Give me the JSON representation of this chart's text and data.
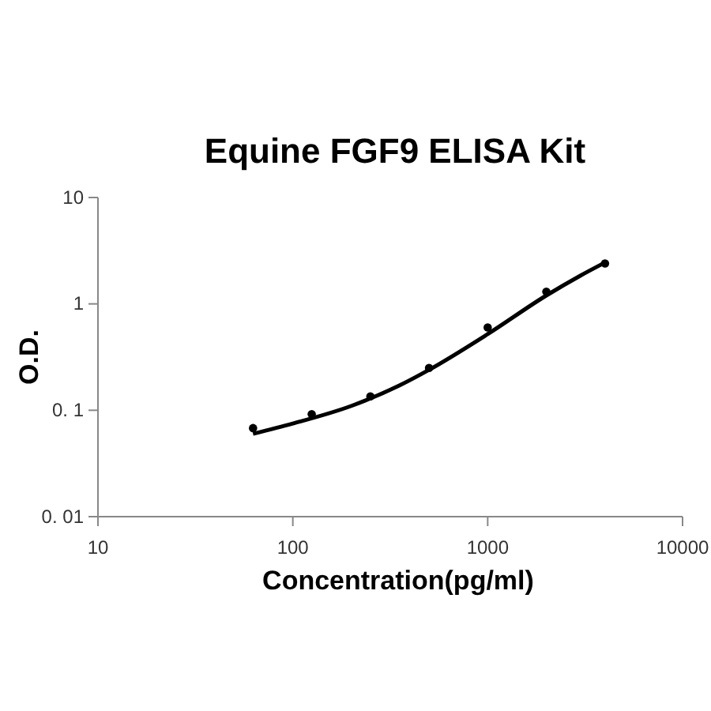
{
  "chart_data": {
    "type": "scatter",
    "title": "Equine FGF9 ELISA Kit",
    "xlabel": "Concentration(pg/ml)",
    "ylabel": "O.D.",
    "log": "xy",
    "xlim": [
      10,
      10000
    ],
    "ylim": [
      0.01,
      10
    ],
    "xticks": [
      10,
      100,
      1000,
      10000
    ],
    "yticks": [
      {
        "value": 0.01,
        "label": "0. 01"
      },
      {
        "value": 0.1,
        "label": "0. 1"
      },
      1,
      10
    ],
    "grid": false,
    "series": [
      {
        "color": "#000000",
        "marker": "circle",
        "x": [
          62.5,
          125,
          250,
          500,
          1000,
          2000,
          4000
        ],
        "values": [
          0.068,
          0.092,
          0.135,
          0.25,
          0.6,
          1.3,
          2.4
        ]
      },
      {
        "type": "line",
        "color": "#000000",
        "marker": "none",
        "line_style": "solid",
        "x": [
          62.5,
          100,
          200,
          350,
          500,
          1000,
          2000,
          3000,
          4000
        ],
        "values": [
          0.06,
          0.075,
          0.11,
          0.17,
          0.24,
          0.52,
          1.2,
          1.85,
          2.45
        ]
      }
    ]
  }
}
